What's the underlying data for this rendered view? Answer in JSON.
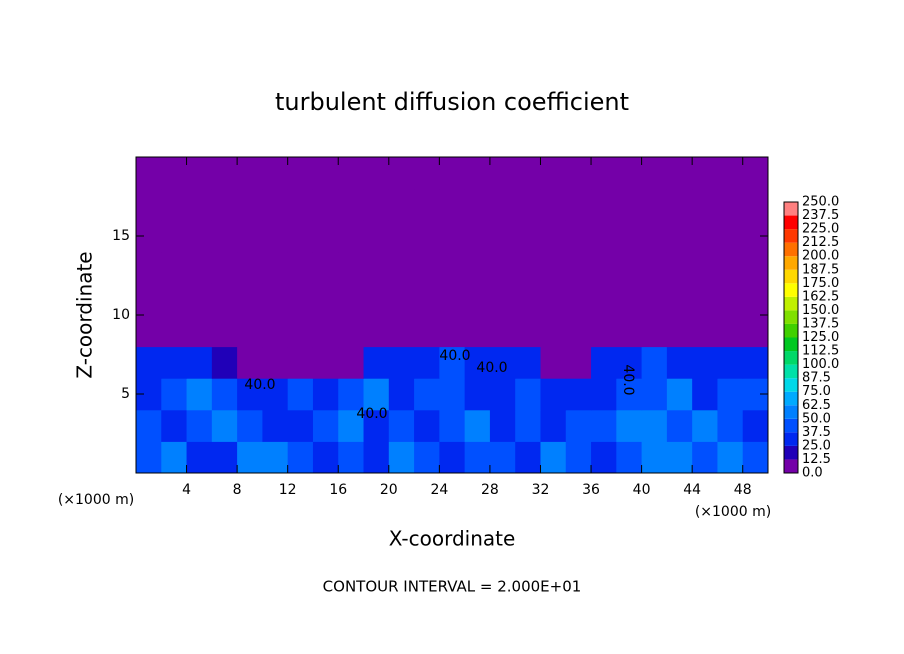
{
  "chart_data": {
    "type": "contour",
    "title": "turbulent diffusion coefficient",
    "xlabel": "X-coordinate",
    "ylabel": "Z-coordinate",
    "x_unit_left": "(×1000 m)",
    "x_unit_right": "(×1000 m)",
    "footnote": "CONTOUR INTERVAL = 2.000E+01",
    "annotations": [
      "40.0",
      "40.0",
      "40.0",
      "40.0",
      "40.0"
    ],
    "xlim": [
      0,
      50
    ],
    "ylim": [
      0,
      20
    ],
    "xticks": [
      4,
      8,
      12,
      16,
      20,
      24,
      28,
      32,
      36,
      40,
      44,
      48
    ],
    "yticks": [
      5,
      10,
      15
    ],
    "x": [
      1,
      3,
      5,
      7,
      9,
      11,
      13,
      15,
      17,
      19,
      21,
      23,
      25,
      27,
      29,
      31,
      33,
      35,
      37,
      39,
      41,
      43,
      45,
      47,
      49
    ],
    "y": [
      1,
      3,
      5,
      7,
      9,
      11,
      13,
      15,
      17,
      19
    ],
    "z": [
      [
        45,
        50,
        30,
        35,
        55,
        60,
        40,
        35,
        45,
        30,
        50,
        40,
        35,
        40,
        45,
        30,
        55,
        40,
        35,
        45,
        50,
        55,
        45,
        50,
        40
      ],
      [
        40,
        35,
        45,
        60,
        40,
        35,
        30,
        40,
        55,
        35,
        45,
        30,
        40,
        50,
        35,
        45,
        30,
        40,
        45,
        60,
        55,
        40,
        50,
        45,
        35
      ],
      [
        35,
        40,
        50,
        45,
        35,
        30,
        45,
        25,
        40,
        50,
        35,
        40,
        45,
        35,
        30,
        40,
        35,
        30,
        35,
        40,
        45,
        50,
        35,
        40,
        45
      ],
      [
        30,
        35,
        25,
        20,
        5,
        0,
        0,
        0,
        5,
        25,
        30,
        35,
        40,
        30,
        35,
        30,
        10,
        0,
        30,
        35,
        40,
        35,
        30,
        35,
        30
      ],
      [
        0,
        0,
        0,
        0,
        0,
        0,
        0,
        0,
        0,
        0,
        0,
        0,
        0,
        0,
        0,
        0,
        0,
        0,
        0,
        0,
        0,
        0,
        0,
        0,
        0
      ],
      [
        0,
        0,
        0,
        0,
        0,
        0,
        0,
        0,
        0,
        0,
        0,
        0,
        0,
        0,
        0,
        0,
        0,
        0,
        0,
        0,
        0,
        0,
        0,
        0,
        0
      ],
      [
        0,
        0,
        0,
        0,
        0,
        0,
        0,
        0,
        0,
        0,
        0,
        0,
        0,
        0,
        0,
        0,
        0,
        0,
        0,
        0,
        0,
        0,
        0,
        0,
        0
      ],
      [
        0,
        0,
        0,
        0,
        0,
        0,
        0,
        0,
        0,
        0,
        0,
        0,
        0,
        0,
        0,
        0,
        0,
        0,
        0,
        0,
        0,
        0,
        0,
        0,
        0
      ],
      [
        0,
        0,
        0,
        0,
        0,
        0,
        0,
        0,
        0,
        0,
        0,
        0,
        0,
        0,
        0,
        0,
        0,
        0,
        0,
        0,
        0,
        0,
        0,
        0,
        0
      ],
      [
        0,
        0,
        0,
        0,
        0,
        0,
        0,
        0,
        0,
        0,
        0,
        0,
        0,
        0,
        0,
        0,
        0,
        0,
        0,
        0,
        0,
        0,
        0,
        0,
        0
      ]
    ],
    "colorbar_levels": [
      {
        "value": 0,
        "label": "0.0"
      },
      {
        "value": 12.5,
        "label": "12.5"
      },
      {
        "value": 25,
        "label": "25.0"
      },
      {
        "value": 37.5,
        "label": "37.5"
      },
      {
        "value": 50,
        "label": "50.0"
      },
      {
        "value": 62.5,
        "label": "62.5"
      },
      {
        "value": 75,
        "label": "75.0"
      },
      {
        "value": 87.5,
        "label": "87.5"
      },
      {
        "value": 100,
        "label": "100.0"
      },
      {
        "value": 112.5,
        "label": "112.5"
      },
      {
        "value": 125,
        "label": "125.0"
      },
      {
        "value": 137.5,
        "label": "137.5"
      },
      {
        "value": 150,
        "label": "150.0"
      },
      {
        "value": 162.5,
        "label": "162.5"
      },
      {
        "value": 175,
        "label": "175.0"
      },
      {
        "value": 187.5,
        "label": "187.5"
      },
      {
        "value": 200,
        "label": "200.0"
      },
      {
        "value": 212.5,
        "label": "212.5"
      },
      {
        "value": 225,
        "label": "225.0"
      },
      {
        "value": 237.5,
        "label": "237.5"
      },
      {
        "value": 250,
        "label": "250.0"
      }
    ],
    "colors": [
      "#7400a8",
      "#2000b8",
      "#0028f0",
      "#0050ff",
      "#0080ff",
      "#00aaff",
      "#00d8e8",
      "#00e0a8",
      "#00d868",
      "#00c820",
      "#40d000",
      "#80e000",
      "#c0f000",
      "#ffff00",
      "#ffd800",
      "#ffa800",
      "#ff7000",
      "#ff3800",
      "#ff0000",
      "#ff8080"
    ]
  }
}
